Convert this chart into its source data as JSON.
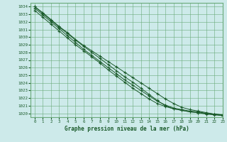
{
  "title": "Graphe pression niveau de la mer (hPa)",
  "bg_color": "#cdeaea",
  "grid_color": "#6aaa7a",
  "line_color": "#1a5a2a",
  "xlim": [
    -0.5,
    23
  ],
  "ylim": [
    1019.5,
    1034.5
  ],
  "xticks": [
    0,
    1,
    2,
    3,
    4,
    5,
    6,
    7,
    8,
    9,
    10,
    11,
    12,
    13,
    14,
    15,
    16,
    17,
    18,
    19,
    20,
    21,
    22,
    23
  ],
  "yticks": [
    1020,
    1021,
    1022,
    1023,
    1024,
    1025,
    1026,
    1027,
    1028,
    1029,
    1030,
    1031,
    1032,
    1033,
    1034
  ],
  "series": [
    [
      1034.0,
      1033.1,
      1032.2,
      1031.3,
      1030.5,
      1029.6,
      1028.8,
      1028.0,
      1027.2,
      1026.4,
      1025.6,
      1024.8,
      1024.1,
      1023.3,
      1022.5,
      1021.7,
      1021.0,
      1020.6,
      1020.4,
      1020.2,
      1020.1,
      1020.0,
      1019.9,
      1019.8
    ],
    [
      1034.0,
      1033.2,
      1032.3,
      1031.4,
      1030.6,
      1029.7,
      1028.9,
      1028.2,
      1027.5,
      1026.8,
      1026.1,
      1025.4,
      1024.7,
      1024.0,
      1023.3,
      1022.6,
      1021.9,
      1021.3,
      1020.8,
      1020.5,
      1020.3,
      1020.1,
      1019.9,
      1019.8
    ],
    [
      1033.8,
      1032.9,
      1032.0,
      1031.1,
      1030.2,
      1029.3,
      1028.4,
      1027.6,
      1026.8,
      1026.0,
      1025.2,
      1024.4,
      1023.7,
      1023.0,
      1022.3,
      1021.6,
      1021.1,
      1020.7,
      1020.5,
      1020.3,
      1020.2,
      1020.0,
      1019.9,
      1019.7
    ],
    [
      1033.5,
      1032.6,
      1031.7,
      1030.8,
      1029.9,
      1029.0,
      1028.2,
      1027.4,
      1026.6,
      1025.7,
      1024.9,
      1024.1,
      1023.3,
      1022.6,
      1021.9,
      1021.3,
      1020.9,
      1020.6,
      1020.4,
      1020.2,
      1020.1,
      1019.9,
      1019.8,
      1019.7
    ]
  ]
}
